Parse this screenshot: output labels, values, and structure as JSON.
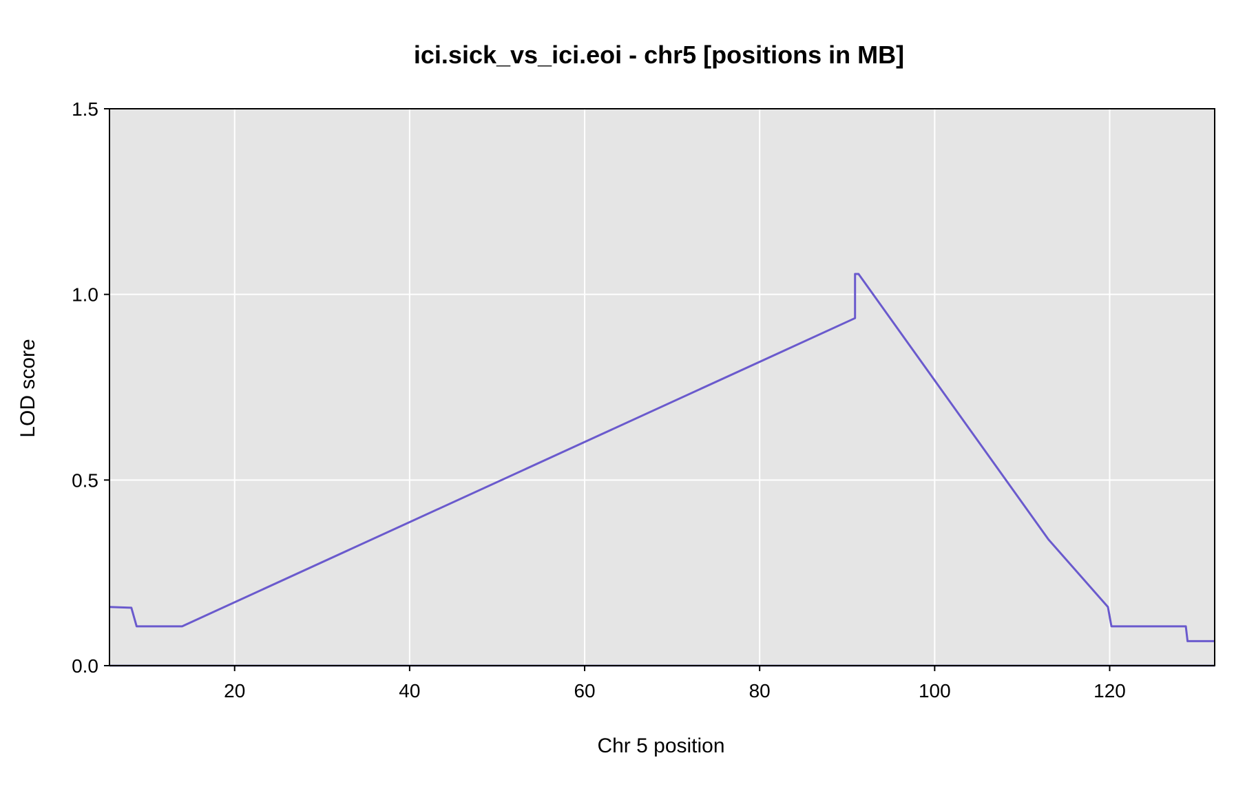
{
  "chart_data": {
    "type": "line",
    "title": "ici.sick_vs_ici.eoi - chr5 [positions in MB]",
    "xlabel": "Chr 5 position",
    "ylabel": "LOD score",
    "xlim": [
      5.7,
      132
    ],
    "ylim": [
      0,
      1.5
    ],
    "xticks": [
      20,
      40,
      60,
      80,
      100,
      120
    ],
    "yticks": [
      0.0,
      0.5,
      1.0,
      1.5
    ],
    "xtick_labels": [
      "20",
      "40",
      "60",
      "80",
      "100",
      "120"
    ],
    "ytick_labels": [
      "0.0",
      "0.5",
      "1.0",
      "1.5"
    ],
    "grid": true,
    "background_color": "#e5e5e5",
    "grid_color": "#ffffff",
    "baseline_color": "#1a1a7a",
    "series": [
      {
        "color": "#6a5acd",
        "x": [
          5.7,
          8.2,
          8.8,
          14.0,
          90.9,
          90.9,
          91.3,
          113.0,
          119.8,
          120.2,
          128.7,
          128.9,
          132.0
        ],
        "y": [
          0.158,
          0.156,
          0.106,
          0.106,
          0.936,
          1.055,
          1.055,
          0.34,
          0.158,
          0.106,
          0.106,
          0.066,
          0.066
        ]
      }
    ]
  }
}
